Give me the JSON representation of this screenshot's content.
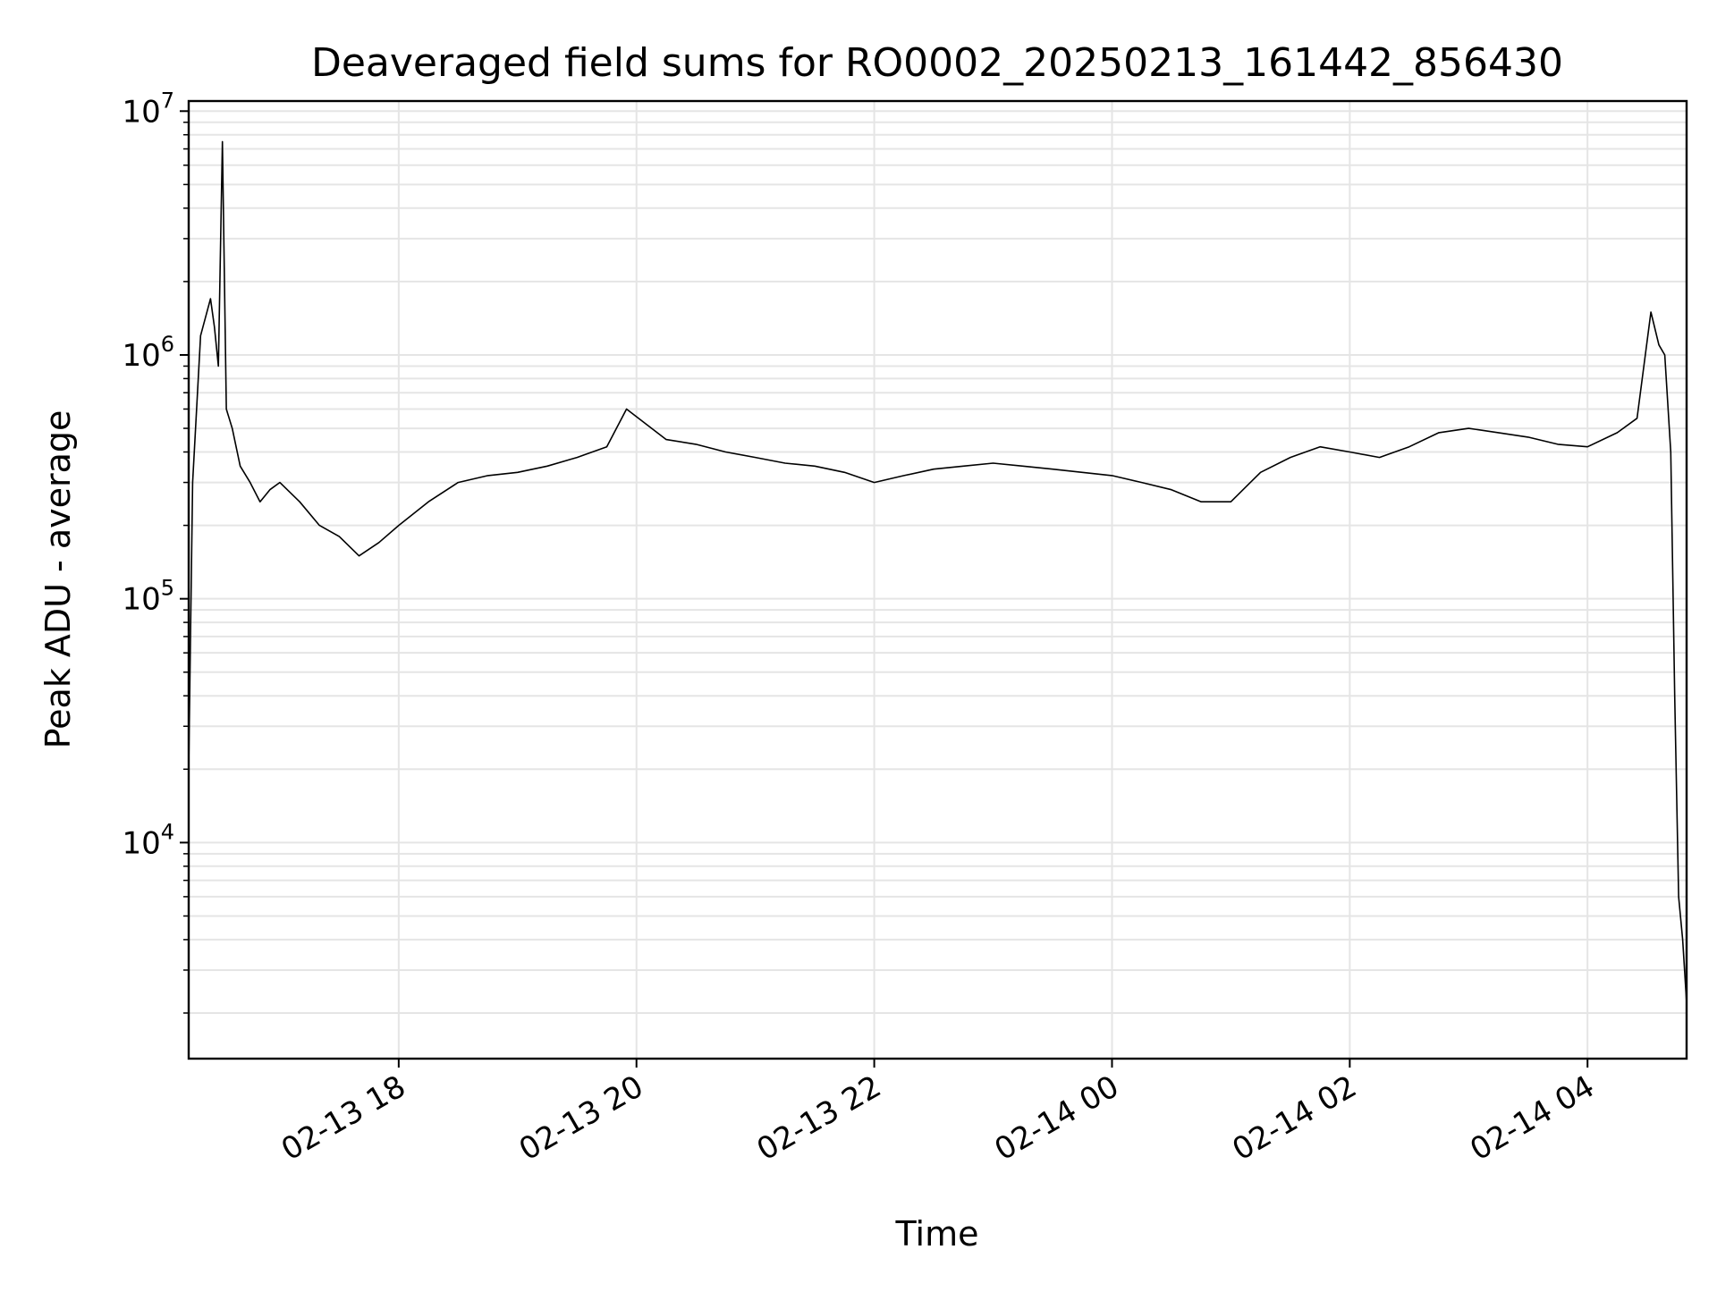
{
  "chart_data": {
    "type": "line",
    "title": "Deaveraged field sums for RO0002_20250213_161442_856430",
    "xlabel": "Time",
    "ylabel": "Peak ADU - average",
    "yscale": "log",
    "xlim": [
      "2025-02-13 16:14",
      "2025-02-14 04:50"
    ],
    "ylim": [
      1300,
      11000000
    ],
    "grid": true,
    "grid_minor_y": true,
    "line_color": "#000000",
    "grid_color": "#e5e5e5",
    "xticks": [
      {
        "value": "2025-02-13 18:00",
        "label": "02-13 18"
      },
      {
        "value": "2025-02-13 20:00",
        "label": "02-13 20"
      },
      {
        "value": "2025-02-13 22:00",
        "label": "02-13 22"
      },
      {
        "value": "2025-02-14 00:00",
        "label": "02-14 00"
      },
      {
        "value": "2025-02-14 02:00",
        "label": "02-14 02"
      },
      {
        "value": "2025-02-14 04:00",
        "label": "02-14 04"
      }
    ],
    "yticks": [
      {
        "value": 10000,
        "base": "10",
        "exp": "4"
      },
      {
        "value": 100000,
        "base": "10",
        "exp": "5"
      },
      {
        "value": 1000000,
        "base": "10",
        "exp": "6"
      },
      {
        "value": 10000000,
        "base": "10",
        "exp": "7"
      }
    ],
    "series": [
      {
        "x": [
          "2025-02-13 16:14",
          "2025-02-13 16:16",
          "2025-02-13 16:20",
          "2025-02-13 16:25",
          "2025-02-13 16:27",
          "2025-02-13 16:29",
          "2025-02-13 16:31",
          "2025-02-13 16:33",
          "2025-02-13 16:36",
          "2025-02-13 16:40",
          "2025-02-13 16:45",
          "2025-02-13 16:50",
          "2025-02-13 16:55",
          "2025-02-13 17:00",
          "2025-02-13 17:10",
          "2025-02-13 17:20",
          "2025-02-13 17:30",
          "2025-02-13 17:40",
          "2025-02-13 17:50",
          "2025-02-13 18:00",
          "2025-02-13 18:15",
          "2025-02-13 18:30",
          "2025-02-13 18:45",
          "2025-02-13 19:00",
          "2025-02-13 19:15",
          "2025-02-13 19:30",
          "2025-02-13 19:45",
          "2025-02-13 19:55",
          "2025-02-13 20:15",
          "2025-02-13 20:30",
          "2025-02-13 20:45",
          "2025-02-13 21:00",
          "2025-02-13 21:15",
          "2025-02-13 21:30",
          "2025-02-13 21:45",
          "2025-02-13 22:00",
          "2025-02-13 22:15",
          "2025-02-13 22:30",
          "2025-02-13 22:45",
          "2025-02-13 23:00",
          "2025-02-13 23:15",
          "2025-02-13 23:30",
          "2025-02-13 23:45",
          "2025-02-14 00:00",
          "2025-02-14 00:15",
          "2025-02-14 00:30",
          "2025-02-14 00:45",
          "2025-02-14 01:00",
          "2025-02-14 01:15",
          "2025-02-14 01:30",
          "2025-02-14 01:45",
          "2025-02-14 02:00",
          "2025-02-14 02:15",
          "2025-02-14 02:30",
          "2025-02-14 02:45",
          "2025-02-14 03:00",
          "2025-02-14 03:15",
          "2025-02-14 03:30",
          "2025-02-14 03:45",
          "2025-02-14 04:00",
          "2025-02-14 04:15",
          "2025-02-14 04:25",
          "2025-02-14 04:32",
          "2025-02-14 04:36",
          "2025-02-14 04:39",
          "2025-02-14 04:42",
          "2025-02-14 04:44",
          "2025-02-14 04:46",
          "2025-02-14 04:48",
          "2025-02-14 04:50"
        ],
        "y": [
          20000,
          300000,
          1200000,
          1700000,
          1300000,
          900000,
          7500000,
          600000,
          500000,
          350000,
          300000,
          250000,
          280000,
          300000,
          250000,
          200000,
          180000,
          150000,
          170000,
          200000,
          250000,
          300000,
          320000,
          330000,
          350000,
          380000,
          420000,
          600000,
          450000,
          430000,
          400000,
          380000,
          360000,
          350000,
          330000,
          300000,
          320000,
          340000,
          350000,
          360000,
          350000,
          340000,
          330000,
          320000,
          300000,
          280000,
          250000,
          250000,
          330000,
          380000,
          420000,
          400000,
          380000,
          420000,
          480000,
          500000,
          480000,
          460000,
          430000,
          420000,
          480000,
          550000,
          1500000,
          1100000,
          1000000,
          400000,
          40000,
          6000,
          4000,
          2200
        ]
      }
    ]
  }
}
